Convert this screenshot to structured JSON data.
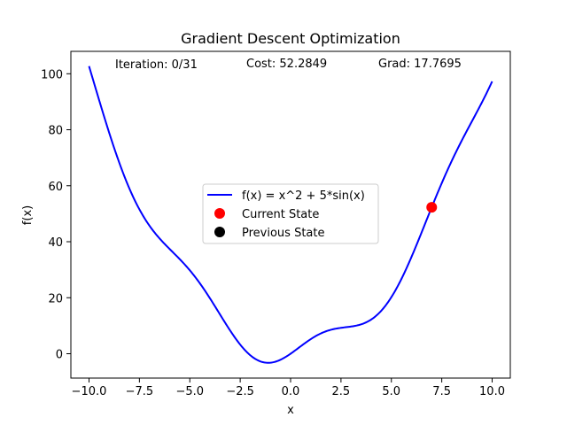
{
  "chart_data": {
    "type": "line",
    "title": "Gradient Descent Optimization",
    "xlabel": "x",
    "ylabel": "f(x)",
    "xlim": [
      -10.9,
      10.9
    ],
    "ylim": [
      -8.7,
      108.0
    ],
    "x_ticks": [
      -10.0,
      -7.5,
      -5.0,
      -2.5,
      0.0,
      2.5,
      5.0,
      7.5,
      10.0
    ],
    "x_tick_labels": [
      "−10.0",
      "−7.5",
      "−5.0",
      "−2.5",
      "0.0",
      "2.5",
      "5.0",
      "7.5",
      "10.0"
    ],
    "y_ticks": [
      0,
      20,
      40,
      60,
      80,
      100
    ],
    "y_tick_labels": [
      "0",
      "20",
      "40",
      "60",
      "80",
      "100"
    ],
    "grid": false,
    "legend_position": "center",
    "series": [
      {
        "name": "f(x) = x^2 + 5*sin(x)",
        "function": "x^2 + 5*sin(x)",
        "x_range": [
          -10,
          10
        ],
        "color": "#0000ff",
        "style": "line"
      },
      {
        "name": "Current State",
        "color": "#ff0000",
        "style": "marker",
        "points": [
          {
            "x": 7.0,
            "y": 52.2849
          }
        ]
      },
      {
        "name": "Previous State",
        "color": "#000000",
        "style": "marker",
        "points": []
      }
    ],
    "annotations": {
      "iteration": "Iteration: 0/31",
      "cost": "Cost: 52.2849",
      "grad": "Grad: 17.7695"
    }
  }
}
